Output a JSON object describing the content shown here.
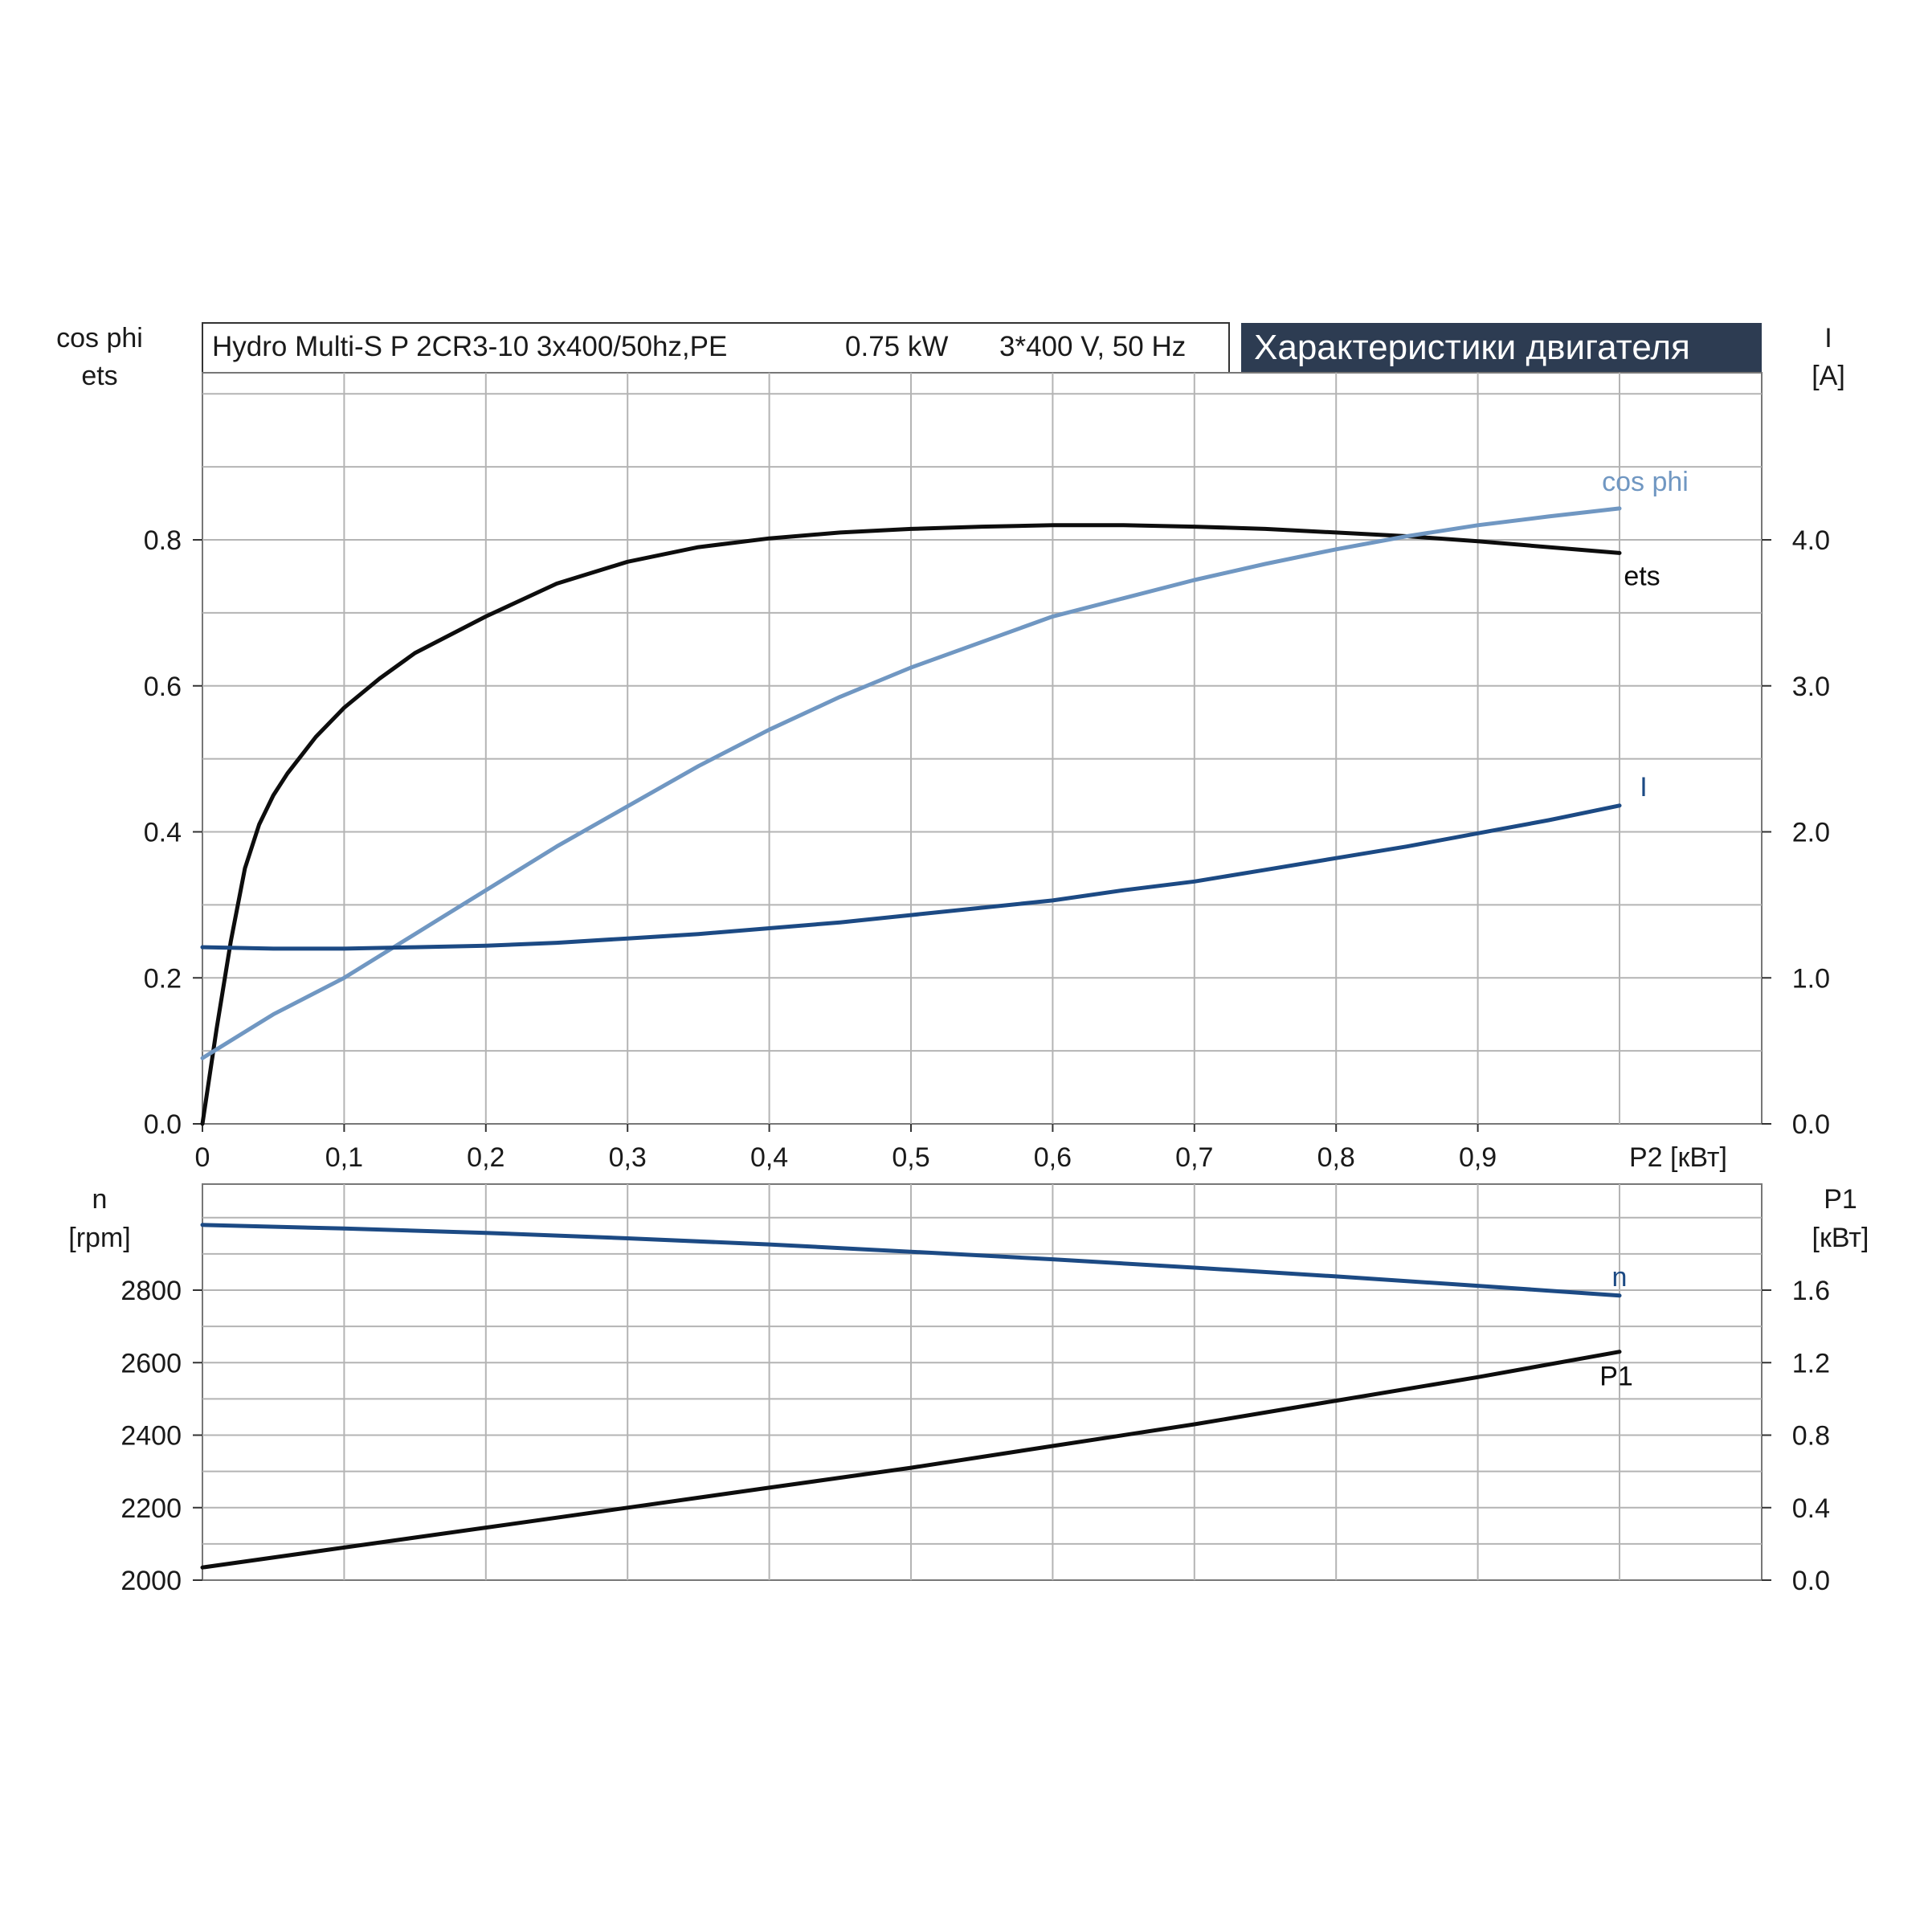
{
  "header": {
    "product": "Hydro Multi-S P 2CR3-10 3x400/50hz,PE",
    "power": "0.75 kW",
    "voltage": "3*400 V, 50 Hz",
    "title": "Характеристики двигателя"
  },
  "colors": {
    "black_curve": "#0d0d0d",
    "dark_blue_curve": "#1c4a84",
    "light_blue_curve": "#7097c2",
    "grid": "#b4b4b4",
    "title_bg": "#2d3c52"
  },
  "axes": {
    "top_left_title": [
      "cos phi",
      "ets"
    ],
    "top_right_title": [
      "I",
      "[A]"
    ],
    "bottom_left_title": [
      "n",
      "[rpm]"
    ],
    "bottom_right_title": [
      "P1",
      "[кВт]"
    ],
    "x_unit": "P2 [кВт]"
  },
  "chart_data": [
    {
      "type": "line",
      "panel": "top",
      "xlim": [
        0,
        1.1
      ],
      "x_ticks": [
        {
          "v": 0,
          "label": "0"
        },
        {
          "v": 0.1,
          "label": "0,1"
        },
        {
          "v": 0.2,
          "label": "0,2"
        },
        {
          "v": 0.3,
          "label": "0,3"
        },
        {
          "v": 0.4,
          "label": "0,4"
        },
        {
          "v": 0.5,
          "label": "0,5"
        },
        {
          "v": 0.6,
          "label": "0,6"
        },
        {
          "v": 0.7,
          "label": "0,7"
        },
        {
          "v": 0.8,
          "label": "0,8"
        },
        {
          "v": 0.9,
          "label": "0,9"
        }
      ],
      "xlabel": "P2 [кВт]",
      "ylim_left": [
        0,
        1.0
      ],
      "left_ticks": [
        "0.0",
        "0.2",
        "0.4",
        "0.6",
        "0.8"
      ],
      "ylim_right": [
        0,
        5.0
      ],
      "right_ticks": [
        "0.0",
        "1.0",
        "2.0",
        "3.0",
        "4.0"
      ],
      "series": [
        {
          "name": "ets",
          "axis": "left",
          "color": "#0d0d0d",
          "x": [
            0,
            0.01,
            0.02,
            0.03,
            0.04,
            0.05,
            0.06,
            0.08,
            0.1,
            0.125,
            0.15,
            0.175,
            0.2,
            0.25,
            0.3,
            0.35,
            0.4,
            0.45,
            0.5,
            0.55,
            0.6,
            0.65,
            0.7,
            0.75,
            0.8,
            0.85,
            0.9,
            0.95,
            1.0
          ],
          "y": [
            0.0,
            0.13,
            0.25,
            0.35,
            0.41,
            0.45,
            0.48,
            0.53,
            0.57,
            0.61,
            0.645,
            0.67,
            0.695,
            0.74,
            0.77,
            0.79,
            0.802,
            0.81,
            0.815,
            0.818,
            0.82,
            0.82,
            0.818,
            0.815,
            0.81,
            0.805,
            0.798,
            0.79,
            0.782
          ]
        },
        {
          "name": "cos phi",
          "axis": "left",
          "color": "#7097c2",
          "x": [
            0,
            0.05,
            0.1,
            0.15,
            0.2,
            0.25,
            0.3,
            0.35,
            0.4,
            0.45,
            0.5,
            0.55,
            0.6,
            0.65,
            0.7,
            0.75,
            0.8,
            0.85,
            0.9,
            0.95,
            1.0
          ],
          "y": [
            0.09,
            0.15,
            0.2,
            0.26,
            0.32,
            0.38,
            0.435,
            0.49,
            0.54,
            0.585,
            0.625,
            0.66,
            0.695,
            0.72,
            0.745,
            0.767,
            0.787,
            0.805,
            0.82,
            0.832,
            0.843
          ]
        },
        {
          "name": "I",
          "axis": "right",
          "color": "#1c4a84",
          "x": [
            0,
            0.05,
            0.1,
            0.15,
            0.2,
            0.25,
            0.3,
            0.35,
            0.4,
            0.45,
            0.5,
            0.55,
            0.6,
            0.65,
            0.7,
            0.75,
            0.8,
            0.85,
            0.9,
            0.95,
            1.0
          ],
          "y": [
            1.21,
            1.2,
            1.2,
            1.21,
            1.22,
            1.24,
            1.27,
            1.3,
            1.34,
            1.38,
            1.43,
            1.48,
            1.53,
            1.6,
            1.66,
            1.74,
            1.82,
            1.9,
            1.99,
            2.08,
            2.18
          ]
        }
      ],
      "labels": [
        {
          "text": "cos phi",
          "series": "cos phi"
        },
        {
          "text": "ets",
          "series": "ets"
        },
        {
          "text": "I",
          "series": "I"
        }
      ]
    },
    {
      "type": "line",
      "panel": "bottom",
      "xlim": [
        0,
        1.1
      ],
      "ylim_left": [
        2000,
        3000
      ],
      "left_ticks": [
        "2000",
        "2200",
        "2400",
        "2600",
        "2800"
      ],
      "ylim_right": [
        0,
        2.0
      ],
      "right_ticks": [
        "0.0",
        "0.4",
        "0.8",
        "1.2",
        "1.6"
      ],
      "series": [
        {
          "name": "n",
          "axis": "left",
          "color": "#1c4a84",
          "x": [
            0,
            0.1,
            0.2,
            0.3,
            0.4,
            0.5,
            0.6,
            0.7,
            0.8,
            0.9,
            1.0
          ],
          "y": [
            2980,
            2970,
            2958,
            2943,
            2926,
            2906,
            2885,
            2862,
            2838,
            2812,
            2785
          ]
        },
        {
          "name": "P1",
          "axis": "right",
          "color": "#0d0d0d",
          "x": [
            0,
            0.1,
            0.2,
            0.3,
            0.4,
            0.5,
            0.6,
            0.7,
            0.8,
            0.9,
            1.0
          ],
          "y": [
            0.07,
            0.18,
            0.29,
            0.4,
            0.51,
            0.62,
            0.74,
            0.86,
            0.99,
            1.12,
            1.26
          ]
        }
      ],
      "labels": [
        {
          "text": "n",
          "series": "n"
        },
        {
          "text": "P1",
          "series": "P1"
        }
      ]
    }
  ]
}
